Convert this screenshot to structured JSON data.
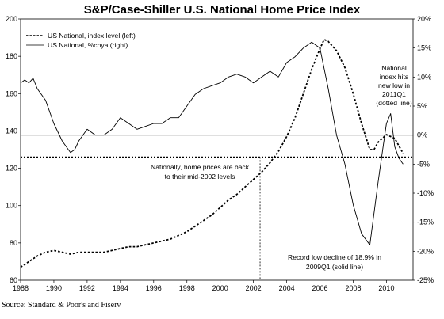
{
  "chart_data": {
    "type": "line",
    "title": "S&P/Case-Shiller U.S. National Home Price Index",
    "source": "Source: Standard & Poor's and Fiserv",
    "x_range": [
      1988,
      2011.6
    ],
    "x_ticks": [
      1988,
      1990,
      1992,
      1994,
      1996,
      1998,
      2000,
      2002,
      2004,
      2006,
      2008,
      2010
    ],
    "x_tick_labels": [
      "1988",
      "1990",
      "1992",
      "1994",
      "1996",
      "1998",
      "2000",
      "2002",
      "2004",
      "2006",
      "2008",
      "2010"
    ],
    "y_left": {
      "range": [
        60,
        200
      ],
      "ticks": [
        60,
        80,
        100,
        120,
        140,
        160,
        180,
        200
      ],
      "tick_labels": [
        "60",
        "80",
        "100",
        "120",
        "140",
        "160",
        "180",
        "200"
      ]
    },
    "y_right": {
      "range": [
        -25,
        20
      ],
      "ticks": [
        -25,
        -20,
        -15,
        -10,
        -5,
        0,
        5,
        10,
        15,
        20
      ],
      "tick_labels": [
        "-25%",
        "-20%",
        "-15%",
        "-10%",
        "-5%",
        "0%",
        "5%",
        "10%",
        "15%",
        "20%"
      ]
    },
    "grid": false,
    "legend_position": "top-left",
    "series": [
      {
        "name": "US National, index level (left)",
        "axis": "left",
        "style": "dotted",
        "x": [
          1988.0,
          1988.5,
          1989.0,
          1989.5,
          1990.0,
          1990.5,
          1991.0,
          1991.5,
          1992.0,
          1992.5,
          1993.0,
          1993.5,
          1994.0,
          1994.5,
          1995.0,
          1995.5,
          1996.0,
          1996.5,
          1997.0,
          1997.5,
          1998.0,
          1998.5,
          1999.0,
          1999.5,
          2000.0,
          2000.5,
          2001.0,
          2001.5,
          2002.0,
          2002.5,
          2003.0,
          2003.5,
          2004.0,
          2004.5,
          2005.0,
          2005.5,
          2006.0,
          2006.25,
          2006.5,
          2007.0,
          2007.5,
          2008.0,
          2008.5,
          2009.0,
          2009.25,
          2009.5,
          2010.0,
          2010.5,
          2011.0
        ],
        "y": [
          67,
          70,
          73,
          75,
          76,
          75,
          74,
          75,
          75,
          75,
          75,
          76,
          77,
          78,
          78,
          79,
          80,
          81,
          82,
          84,
          86,
          89,
          92,
          95,
          99,
          103,
          106,
          110,
          114,
          118,
          123,
          129,
          137,
          147,
          160,
          173,
          184,
          189,
          188,
          183,
          174,
          160,
          144,
          130,
          130,
          134,
          138,
          136,
          128
        ]
      },
      {
        "name": "US National, %chya (right)",
        "axis": "right",
        "style": "solid",
        "x": [
          1988.0,
          1988.25,
          1988.5,
          1988.75,
          1989.0,
          1989.5,
          1990.0,
          1990.5,
          1991.0,
          1991.25,
          1991.5,
          1992.0,
          1992.5,
          1993.0,
          1993.5,
          1994.0,
          1994.5,
          1995.0,
          1995.5,
          1996.0,
          1996.5,
          1997.0,
          1997.5,
          1998.0,
          1998.5,
          1999.0,
          1999.5,
          2000.0,
          2000.5,
          2001.0,
          2001.5,
          2002.0,
          2002.5,
          2003.0,
          2003.5,
          2004.0,
          2004.5,
          2005.0,
          2005.5,
          2006.0,
          2006.5,
          2007.0,
          2007.5,
          2008.0,
          2008.5,
          2009.0,
          2009.5,
          2009.8,
          2010.0,
          2010.25,
          2010.5,
          2010.75,
          2011.0
        ],
        "y": [
          9.0,
          9.5,
          9.0,
          9.8,
          8.0,
          6.0,
          2.0,
          -1.0,
          -3.0,
          -2.5,
          -1.0,
          1.0,
          0.0,
          0.0,
          1.0,
          3.0,
          2.0,
          1.0,
          1.5,
          2.0,
          2.0,
          3.0,
          3.0,
          5.0,
          7.0,
          8.0,
          8.5,
          9.0,
          10.0,
          10.5,
          10.0,
          9.0,
          10.0,
          11.0,
          10.0,
          12.5,
          13.5,
          15.0,
          16.0,
          15.0,
          8.0,
          0.0,
          -5.0,
          -12.0,
          -17.0,
          -18.9,
          -8.0,
          -2.0,
          2.0,
          3.7,
          -2.0,
          -4.0,
          -5.0
        ]
      }
    ],
    "reference_lines": [
      {
        "axis": "left",
        "y": 126,
        "style": "dotted",
        "orientation": "horizontal"
      },
      {
        "axis": "right",
        "y": 0,
        "style": "solid",
        "orientation": "horizontal"
      },
      {
        "x": 2002.4,
        "style": "dotted",
        "orientation": "vertical"
      }
    ],
    "annotations": [
      {
        "id": "mid2002",
        "lines": [
          "Nationally, home prices are back",
          "to their mid-2002 levels"
        ]
      },
      {
        "id": "record_low",
        "lines": [
          "Record low decline of 18.9% in",
          "2009Q1 (solid line)"
        ]
      },
      {
        "id": "new_low",
        "lines": [
          "National",
          "index hits",
          "new low in",
          "2011Q1",
          "(dotted line)"
        ]
      }
    ]
  },
  "colors": {
    "background": "#ffffff",
    "ink": "#000000"
  }
}
